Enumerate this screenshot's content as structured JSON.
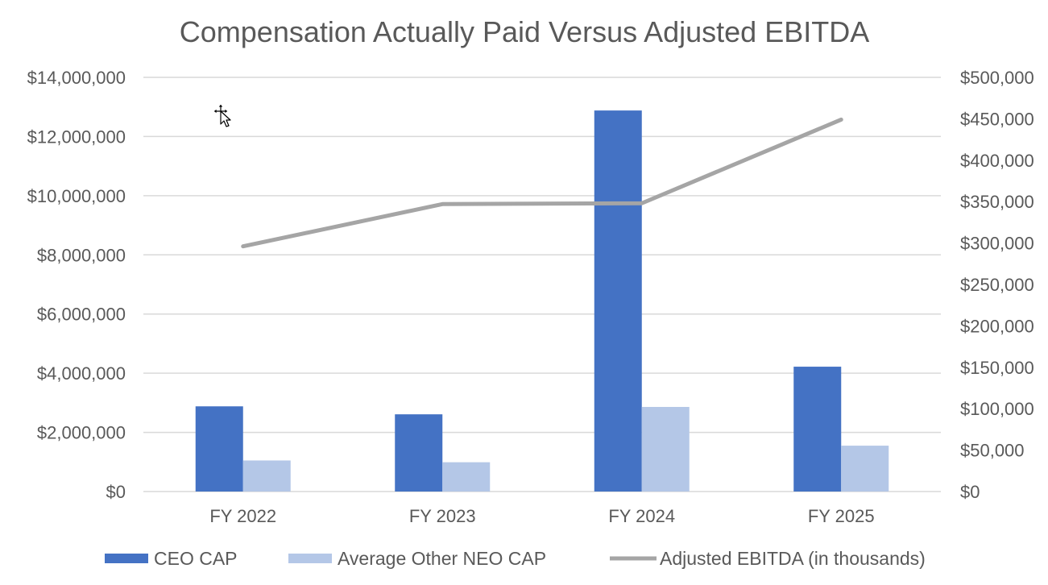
{
  "chart_data": {
    "type": "bar",
    "title": "Compensation Actually Paid Versus Adjusted EBITDA",
    "categories": [
      "FY 2022",
      "FY 2023",
      "FY 2024",
      "FY 2025"
    ],
    "series": [
      {
        "name": "CEO CAP",
        "type": "bar",
        "axis": "left",
        "color": "#4472c4",
        "values": [
          2880000,
          2610000,
          12880000,
          4220000
        ]
      },
      {
        "name": "Average Other NEO CAP",
        "type": "bar",
        "axis": "left",
        "color": "#b4c7e7",
        "values": [
          1050000,
          990000,
          2860000,
          1550000
        ]
      },
      {
        "name": "Adjusted EBITDA (in thousands)",
        "type": "line",
        "axis": "right",
        "color": "#a5a5a5",
        "values": [
          296000,
          347000,
          348000,
          449000
        ]
      }
    ],
    "y_left": {
      "min": 0,
      "max": 14000000,
      "ticks": [
        0,
        2000000,
        4000000,
        6000000,
        8000000,
        10000000,
        12000000,
        14000000
      ],
      "tick_labels": [
        "$0",
        "$2,000,000",
        "$4,000,000",
        "$6,000,000",
        "$8,000,000",
        "$10,000,000",
        "$12,000,000",
        "$14,000,000"
      ]
    },
    "y_right": {
      "min": 0,
      "max": 500000,
      "ticks": [
        0,
        50000,
        100000,
        150000,
        200000,
        250000,
        300000,
        350000,
        400000,
        450000,
        500000
      ],
      "tick_labels": [
        "$0",
        "$50,000",
        "$100,000",
        "$150,000",
        "$200,000",
        "$250,000",
        "$300,000",
        "$350,000",
        "$400,000",
        "$450,000",
        "$500,000"
      ]
    },
    "grid": true,
    "legend_position": "bottom"
  },
  "icons": {
    "cursor": "move-cursor-icon"
  }
}
